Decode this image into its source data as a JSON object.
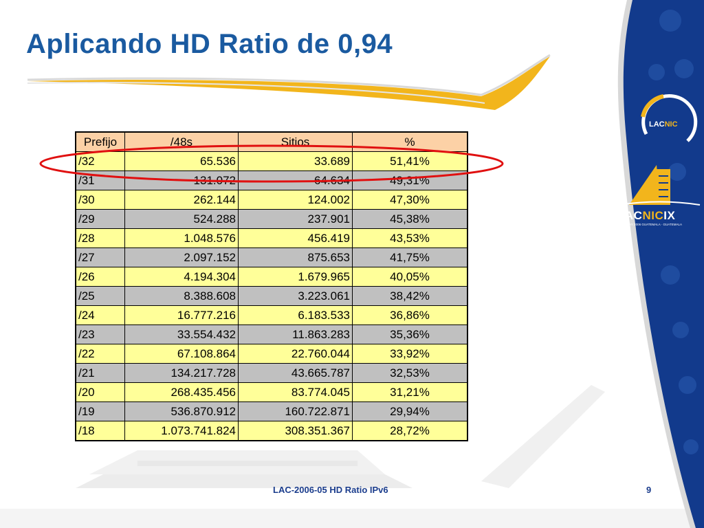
{
  "slide": {
    "title": "Aplicando HD Ratio de 0,94",
    "footer": "LAC-2006-05 HD Ratio IPv6",
    "page_number": "9"
  },
  "logos": {
    "lacnic": {
      "lac": "LAC",
      "nic": "NIC"
    },
    "lacnicix": {
      "lac": "LAC",
      "nic": "NIC",
      "ix": "IX",
      "subtitle": "22/26 MAY 2006 GUATEMALA · GUATEMALA"
    }
  },
  "colors": {
    "title": "#1a5aa0",
    "header_row": "#fcd1a6",
    "row_yellow": "#ffff99",
    "row_gray": "#c0c0c0",
    "highlight": "#e01010",
    "panel_blue": "#123a8c",
    "accent_gold": "#f2b51c"
  },
  "table": {
    "headers": [
      "Prefijo",
      "/48s",
      "Sitios",
      "%"
    ],
    "highlighted_row": 0,
    "rows": [
      [
        "/32",
        "65.536",
        "33.689",
        "51,41%"
      ],
      [
        "/31",
        "131.072",
        "64.634",
        "49,31%"
      ],
      [
        "/30",
        "262.144",
        "124.002",
        "47,30%"
      ],
      [
        "/29",
        "524.288",
        "237.901",
        "45,38%"
      ],
      [
        "/28",
        "1.048.576",
        "456.419",
        "43,53%"
      ],
      [
        "/27",
        "2.097.152",
        "875.653",
        "41,75%"
      ],
      [
        "/26",
        "4.194.304",
        "1.679.965",
        "40,05%"
      ],
      [
        "/25",
        "8.388.608",
        "3.223.061",
        "38,42%"
      ],
      [
        "/24",
        "16.777.216",
        "6.183.533",
        "36,86%"
      ],
      [
        "/23",
        "33.554.432",
        "11.863.283",
        "35,36%"
      ],
      [
        "/22",
        "67.108.864",
        "22.760.044",
        "33,92%"
      ],
      [
        "/21",
        "134.217.728",
        "43.665.787",
        "32,53%"
      ],
      [
        "/20",
        "268.435.456",
        "83.774.045",
        "31,21%"
      ],
      [
        "/19",
        "536.870.912",
        "160.722.871",
        "29,94%"
      ],
      [
        "/18",
        "1.073.741.824",
        "308.351.367",
        "28,72%"
      ]
    ]
  }
}
